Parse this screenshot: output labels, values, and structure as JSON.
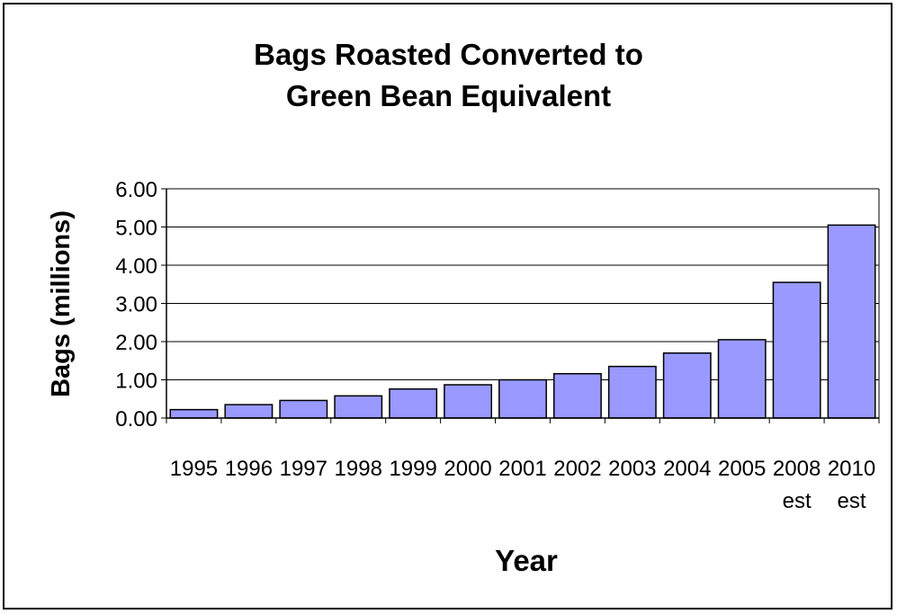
{
  "chart_data": {
    "type": "bar",
    "title": [
      "Bags Roasted Converted to",
      "Green Bean Equivalent"
    ],
    "xlabel": "Year",
    "ylabel": "Bags (millions)",
    "categories": [
      [
        "1995"
      ],
      [
        "1996"
      ],
      [
        "1997"
      ],
      [
        "1998"
      ],
      [
        "1999"
      ],
      [
        "2000"
      ],
      [
        "2001"
      ],
      [
        "2002"
      ],
      [
        "2003"
      ],
      [
        "2004"
      ],
      [
        "2005"
      ],
      [
        "2008",
        "est"
      ],
      [
        "2010",
        "est"
      ]
    ],
    "series": [
      {
        "values": [
          0.22,
          0.35,
          0.46,
          0.58,
          0.76,
          0.87,
          1.0,
          1.16,
          1.35,
          1.7,
          2.05,
          3.55,
          5.05
        ]
      }
    ],
    "ylim": [
      0,
      6
    ],
    "yticks": [
      "0.00",
      "1.00",
      "2.00",
      "3.00",
      "4.00",
      "5.00",
      "6.00"
    ],
    "grid": true,
    "legend": "none",
    "colors": {
      "bar": "#9999ff",
      "bar_stroke": "#000000",
      "grid": "#000000"
    }
  }
}
